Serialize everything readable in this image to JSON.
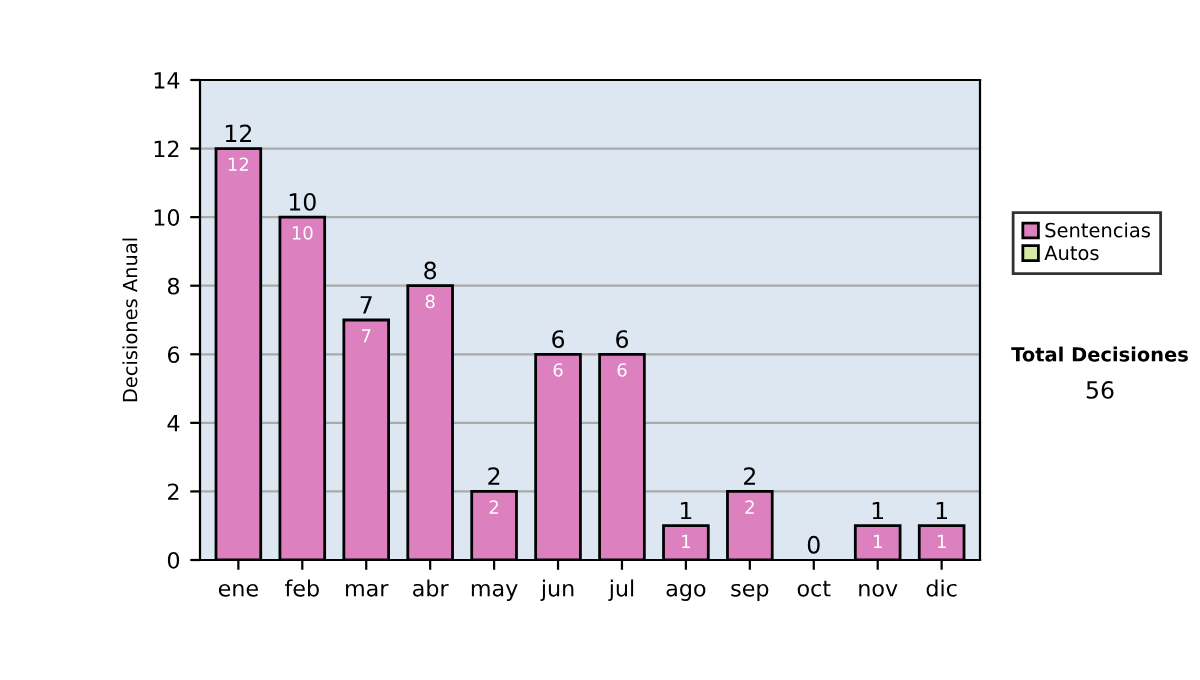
{
  "chart_data": {
    "type": "bar",
    "stacked": true,
    "ylabel": "Decisiones Anual",
    "categories": [
      "ene",
      "feb",
      "mar",
      "abr",
      "may",
      "jun",
      "jul",
      "ago",
      "sep",
      "oct",
      "nov",
      "dic"
    ],
    "series": [
      {
        "name": "Sentencias",
        "color": "#dd80bf",
        "values": [
          12,
          10,
          7,
          8,
          2,
          6,
          6,
          1,
          2,
          0,
          1,
          1
        ],
        "value_labels": [
          "12",
          "10",
          "7",
          "8",
          "2",
          "6",
          "6",
          "1",
          "2",
          null,
          "1",
          "1"
        ]
      },
      {
        "name": "Autos",
        "color": "#d6eaa4",
        "values": [
          0,
          0,
          0,
          0,
          0,
          0,
          0,
          0,
          0,
          0,
          0,
          0
        ]
      }
    ],
    "totals": [
      "12",
      "10",
      "7",
      "8",
      "2",
      "6",
      "6",
      "1",
      "2",
      "0",
      "1",
      "1"
    ],
    "ylim": [
      0,
      14
    ],
    "yticks": [
      0,
      2,
      4,
      6,
      8,
      10,
      12,
      14
    ],
    "grid": "y",
    "legend": "right",
    "annotations": [
      "Total Decisiones",
      "56"
    ]
  }
}
